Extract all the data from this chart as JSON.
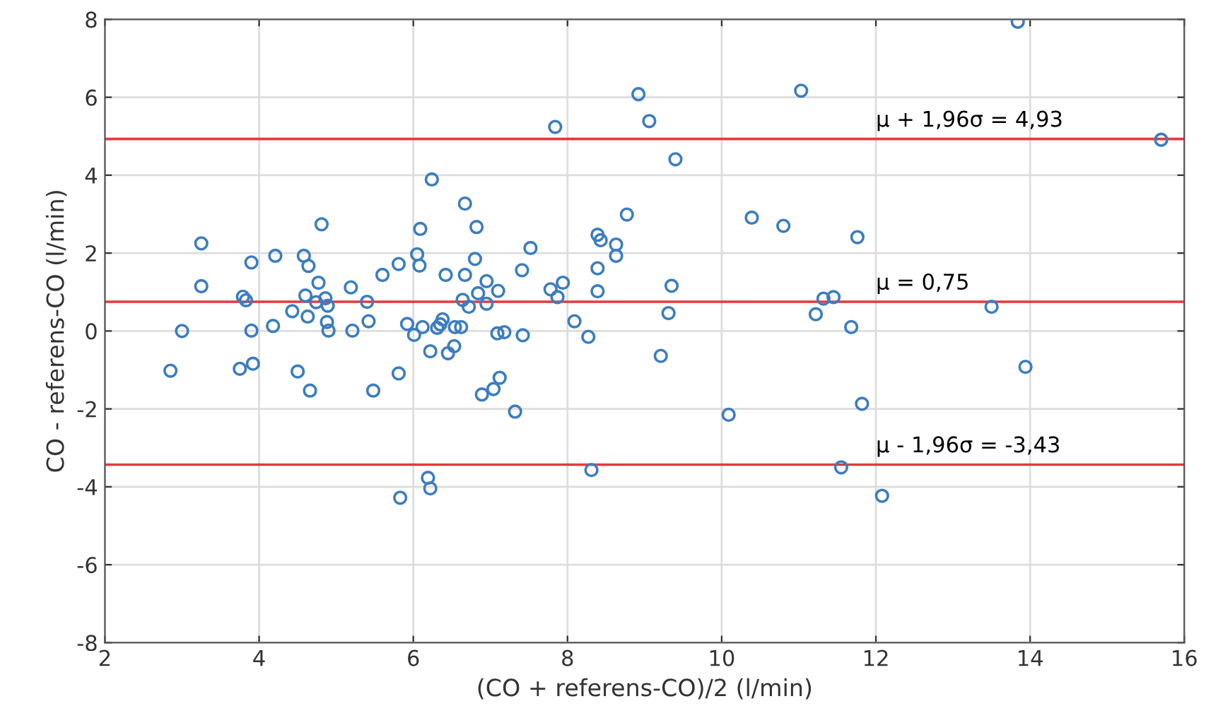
{
  "chart_data": {
    "type": "scatter",
    "xlabel": "(CO + referens-CO)/2 (l/min)",
    "ylabel": "CO - referens-CO (l/min)",
    "xlim": [
      2,
      16
    ],
    "ylim": [
      -8,
      8
    ],
    "xticks": [
      2,
      4,
      6,
      8,
      10,
      12,
      14,
      16
    ],
    "yticks": [
      -8,
      -6,
      -4,
      -2,
      0,
      2,
      4,
      6,
      8
    ],
    "grid": true,
    "marker": "circle",
    "series": [
      {
        "color": "#3c7dc0",
        "x": [
          3.25,
          3.25,
          3.0,
          2.85,
          3.9,
          3.79,
          3.83,
          3.9,
          3.75,
          3.92,
          4.21,
          4.18,
          4.81,
          4.58,
          4.64,
          4.77,
          4.6,
          4.43,
          4.63,
          4.5,
          4.66,
          4.74,
          4.86,
          4.89,
          4.88,
          4.9,
          5.19,
          5.21,
          5.4,
          5.42,
          5.48,
          5.6,
          6.24,
          6.67,
          6.09,
          6.82,
          6.05,
          6.08,
          5.81,
          6.42,
          6.67,
          6.8,
          6.95,
          6.84,
          7.1,
          6.64,
          6.72,
          6.95,
          5.92,
          6.01,
          6.12,
          6.31,
          6.35,
          6.38,
          6.54,
          6.62,
          6.22,
          6.45,
          6.53,
          7.09,
          7.18,
          7.42,
          7.41,
          7.52,
          7.78,
          7.94,
          7.87,
          8.09,
          8.27,
          8.39,
          8.43,
          8.63,
          8.63,
          8.77,
          8.39,
          8.39,
          5.81,
          6.89,
          7.04,
          7.12,
          7.32,
          8.31,
          6.19,
          6.22,
          5.83,
          13.84,
          8.92,
          11.03,
          9.06,
          15.7,
          9.4,
          10.39,
          10.8,
          11.76,
          9.35,
          9.31,
          11.32,
          11.45,
          11.22,
          11.68,
          13.5,
          9.21,
          13.94,
          10.09,
          11.82,
          11.55,
          12.08,
          7.84
        ],
        "values": [
          2.25,
          1.15,
          0.0,
          -1.02,
          1.76,
          0.88,
          0.79,
          0.01,
          -0.97,
          -0.84,
          1.93,
          0.13,
          2.74,
          1.93,
          1.67,
          1.24,
          0.91,
          0.51,
          0.37,
          -1.04,
          -1.53,
          0.74,
          0.84,
          0.65,
          0.23,
          0.01,
          1.12,
          0.01,
          0.75,
          0.25,
          -1.53,
          1.44,
          3.89,
          3.27,
          2.62,
          2.67,
          1.97,
          1.68,
          1.72,
          1.44,
          1.44,
          1.85,
          1.28,
          0.97,
          1.03,
          0.8,
          0.62,
          0.7,
          0.18,
          -0.1,
          0.1,
          0.08,
          0.17,
          0.3,
          0.1,
          0.1,
          -0.52,
          -0.57,
          -0.39,
          -0.06,
          -0.03,
          -0.11,
          1.56,
          2.13,
          1.07,
          1.24,
          0.87,
          0.25,
          -0.15,
          2.47,
          2.33,
          2.22,
          1.93,
          2.99,
          1.61,
          1.02,
          -1.09,
          -1.63,
          -1.49,
          -1.2,
          -2.07,
          -3.57,
          -3.77,
          -4.04,
          -4.28,
          7.94,
          6.08,
          6.17,
          5.39,
          4.91,
          4.41,
          2.91,
          2.7,
          2.41,
          1.16,
          0.46,
          0.83,
          0.87,
          0.43,
          0.1,
          0.62,
          -0.64,
          -0.92,
          -2.15,
          -1.87,
          -3.5,
          -4.23,
          5.24
        ]
      }
    ],
    "ref_lines": [
      {
        "axis": "y",
        "value": 4.93,
        "label": "μ + 1,96σ = 4,93",
        "color": "#e8383d"
      },
      {
        "axis": "y",
        "value": 0.75,
        "label": "μ = 0,75",
        "color": "#e8383d"
      },
      {
        "axis": "y",
        "value": -3.43,
        "label": "μ - 1,96σ = -3,43",
        "color": "#e8383d"
      }
    ]
  }
}
